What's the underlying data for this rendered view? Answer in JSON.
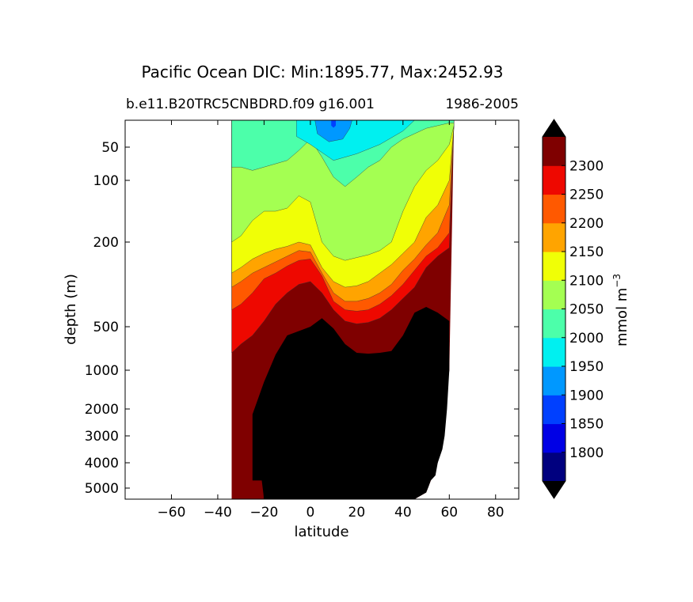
{
  "chart_data": {
    "type": "contour",
    "title": "Pacific Ocean DIC: Min:1895.77, Max:2452.93",
    "subtitle_left": "b.e11.B20TRC5CNBDRD.f09 g16.001",
    "subtitle_right": "1986-2005",
    "xlabel": "latitude",
    "ylabel": "depth (m)",
    "xlim": [
      -80,
      90
    ],
    "ylim_depth": [
      0,
      5500
    ],
    "y_scale": "piecewise (stretched upper ocean)",
    "x_ticks": [
      -60,
      -40,
      -20,
      0,
      20,
      40,
      60,
      80
    ],
    "x_tick_labels": [
      "−60",
      "−40",
      "−20",
      "0",
      "20",
      "40",
      "60",
      "80"
    ],
    "y_ticks": [
      50,
      100,
      200,
      500,
      1000,
      2000,
      3000,
      4000,
      5000
    ],
    "y_tick_labels": [
      "50",
      "100",
      "200",
      "500",
      "1000",
      "2000",
      "3000",
      "4000",
      "5000"
    ],
    "colorbar": {
      "label": "mmol m",
      "label_superscript": "−3",
      "levels": [
        1750,
        1800,
        1850,
        1900,
        1950,
        2000,
        2050,
        2100,
        2150,
        2200,
        2250,
        2300,
        2350
      ],
      "tick_labels": [
        "1800",
        "1850",
        "1900",
        "1950",
        "2000",
        "2050",
        "2100",
        "2150",
        "2200",
        "2250",
        "2300"
      ],
      "colors": [
        "#00007f",
        "#0000e5",
        "#0040ff",
        "#0098ff",
        "#00f0f0",
        "#4cffaa",
        "#a4ff52",
        "#f0ff06",
        "#ffa400",
        "#ff5900",
        "#ee0800",
        "#7f0000"
      ],
      "over_color": "#000000",
      "under_color": "#000000",
      "extend": "both"
    },
    "section_data": {
      "lat_range": [
        -34,
        67
      ],
      "isoline_depths_at_lat": {
        "lat": [
          -34,
          -30,
          -25,
          -20,
          -15,
          -10,
          -5,
          0,
          5,
          10,
          15,
          20,
          25,
          30,
          35,
          40,
          45,
          50,
          55,
          60,
          62
        ],
        "contour_2050": [
          80,
          80,
          85,
          80,
          75,
          70,
          55,
          35,
          65,
          95,
          110,
          95,
          80,
          70,
          50,
          35,
          25,
          15,
          10,
          5,
          5
        ],
        "contour_2100": [
          200,
          190,
          165,
          150,
          150,
          145,
          125,
          135,
          200,
          250,
          265,
          255,
          245,
          230,
          200,
          150,
          110,
          85,
          70,
          45,
          40
        ],
        "contour_2150": [
          310,
          290,
          260,
          240,
          225,
          215,
          200,
          210,
          290,
          340,
          360,
          355,
          340,
          310,
          280,
          240,
          200,
          160,
          140,
          100,
          90
        ],
        "contour_2200": [
          360,
          340,
          310,
          290,
          270,
          250,
          230,
          235,
          310,
          380,
          410,
          410,
          400,
          380,
          350,
          300,
          260,
          210,
          185,
          140,
          130
        ],
        "contour_2250": [
          440,
          420,
          380,
          330,
          310,
          285,
          265,
          260,
          320,
          410,
          440,
          445,
          440,
          420,
          390,
          350,
          300,
          250,
          220,
          185,
          170
        ],
        "contour_2300": [
          800,
          700,
          600,
          480,
          420,
          380,
          350,
          340,
          380,
          440,
          480,
          490,
          485,
          470,
          440,
          400,
          360,
          290,
          250,
          220,
          210
        ],
        "contour_2350_top": [
          null,
          null,
          2200,
          1300,
          820,
          600,
          550,
          500,
          470,
          520,
          700,
          800,
          810,
          800,
          780,
          600,
          450,
          430,
          450,
          480,
          null
        ]
      },
      "bottom_depth": {
        "lat": [
          -34,
          45,
          50,
          52,
          54,
          55,
          57,
          58,
          59,
          60,
          61,
          62
        ],
        "depth": [
          5500,
          5500,
          5200,
          4700,
          4500,
          4000,
          3500,
          3000,
          2000,
          1000,
          200,
          10
        ]
      }
    }
  }
}
